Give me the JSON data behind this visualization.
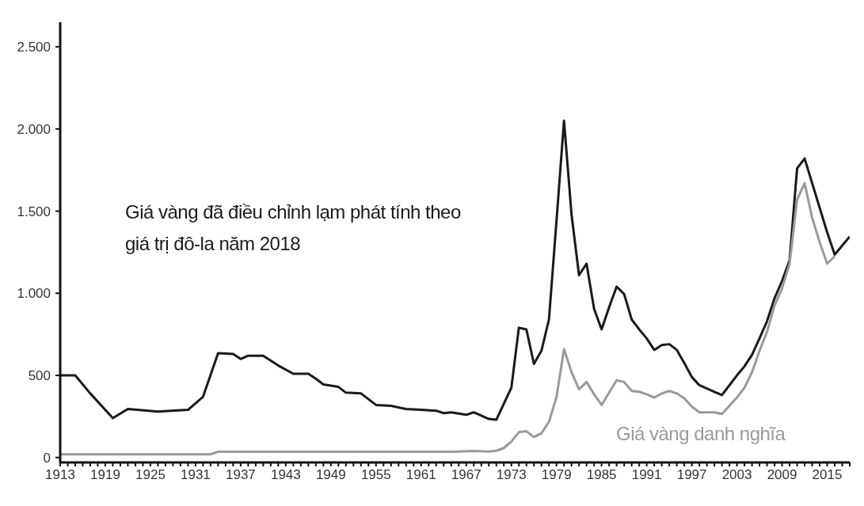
{
  "chart_data": {
    "type": "line",
    "xlim": [
      1913,
      2018
    ],
    "ylim": [
      -30,
      2650
    ],
    "xticks": [
      {
        "value": 1913,
        "label": "1913"
      },
      {
        "value": 1914,
        "label": null
      },
      {
        "value": 1915,
        "label": null
      },
      {
        "value": 1916,
        "label": null
      },
      {
        "value": 1917,
        "label": null
      },
      {
        "value": 1918,
        "label": null
      },
      {
        "value": 1919,
        "label": "1919"
      },
      {
        "value": 1920,
        "label": null
      },
      {
        "value": 1921,
        "label": null
      },
      {
        "value": 1922,
        "label": null
      },
      {
        "value": 1923,
        "label": null
      },
      {
        "value": 1924,
        "label": null
      },
      {
        "value": 1925,
        "label": "1925"
      },
      {
        "value": 1926,
        "label": null
      },
      {
        "value": 1927,
        "label": null
      },
      {
        "value": 1928,
        "label": null
      },
      {
        "value": 1929,
        "label": null
      },
      {
        "value": 1930,
        "label": null
      },
      {
        "value": 1931,
        "label": "1931"
      },
      {
        "value": 1932,
        "label": null
      },
      {
        "value": 1933,
        "label": null
      },
      {
        "value": 1934,
        "label": null
      },
      {
        "value": 1935,
        "label": null
      },
      {
        "value": 1936,
        "label": null
      },
      {
        "value": 1937,
        "label": "1937"
      },
      {
        "value": 1938,
        "label": null
      },
      {
        "value": 1939,
        "label": null
      },
      {
        "value": 1940,
        "label": null
      },
      {
        "value": 1941,
        "label": null
      },
      {
        "value": 1942,
        "label": null
      },
      {
        "value": 1943,
        "label": "1943"
      },
      {
        "value": 1944,
        "label": null
      },
      {
        "value": 1945,
        "label": null
      },
      {
        "value": 1946,
        "label": null
      },
      {
        "value": 1947,
        "label": null
      },
      {
        "value": 1948,
        "label": null
      },
      {
        "value": 1949,
        "label": "1949"
      },
      {
        "value": 1950,
        "label": null
      },
      {
        "value": 1951,
        "label": null
      },
      {
        "value": 1952,
        "label": null
      },
      {
        "value": 1953,
        "label": null
      },
      {
        "value": 1954,
        "label": null
      },
      {
        "value": 1955,
        "label": "1955"
      },
      {
        "value": 1956,
        "label": null
      },
      {
        "value": 1957,
        "label": null
      },
      {
        "value": 1958,
        "label": null
      },
      {
        "value": 1959,
        "label": null
      },
      {
        "value": 1960,
        "label": null
      },
      {
        "value": 1961,
        "label": "1961"
      },
      {
        "value": 1962,
        "label": null
      },
      {
        "value": 1963,
        "label": null
      },
      {
        "value": 1964,
        "label": null
      },
      {
        "value": 1965,
        "label": null
      },
      {
        "value": 1966,
        "label": null
      },
      {
        "value": 1967,
        "label": "1967"
      },
      {
        "value": 1968,
        "label": null
      },
      {
        "value": 1969,
        "label": null
      },
      {
        "value": 1970,
        "label": null
      },
      {
        "value": 1971,
        "label": null
      },
      {
        "value": 1972,
        "label": null
      },
      {
        "value": 1973,
        "label": "1973"
      },
      {
        "value": 1974,
        "label": null
      },
      {
        "value": 1975,
        "label": null
      },
      {
        "value": 1976,
        "label": null
      },
      {
        "value": 1977,
        "label": null
      },
      {
        "value": 1978,
        "label": null
      },
      {
        "value": 1979,
        "label": "1979"
      },
      {
        "value": 1980,
        "label": null
      },
      {
        "value": 1981,
        "label": null
      },
      {
        "value": 1982,
        "label": null
      },
      {
        "value": 1983,
        "label": null
      },
      {
        "value": 1984,
        "label": null
      },
      {
        "value": 1985,
        "label": "1985"
      },
      {
        "value": 1986,
        "label": null
      },
      {
        "value": 1987,
        "label": null
      },
      {
        "value": 1988,
        "label": null
      },
      {
        "value": 1989,
        "label": null
      },
      {
        "value": 1990,
        "label": null
      },
      {
        "value": 1991,
        "label": "1991"
      },
      {
        "value": 1992,
        "label": null
      },
      {
        "value": 1993,
        "label": null
      },
      {
        "value": 1994,
        "label": null
      },
      {
        "value": 1995,
        "label": null
      },
      {
        "value": 1996,
        "label": null
      },
      {
        "value": 1997,
        "label": "1997"
      },
      {
        "value": 1998,
        "label": null
      },
      {
        "value": 1999,
        "label": null
      },
      {
        "value": 2000,
        "label": null
      },
      {
        "value": 2001,
        "label": null
      },
      {
        "value": 2002,
        "label": null
      },
      {
        "value": 2003,
        "label": "2003"
      },
      {
        "value": 2004,
        "label": null
      },
      {
        "value": 2005,
        "label": null
      },
      {
        "value": 2006,
        "label": null
      },
      {
        "value": 2007,
        "label": null
      },
      {
        "value": 2008,
        "label": null
      },
      {
        "value": 2009,
        "label": "2009"
      },
      {
        "value": 2010,
        "label": null
      },
      {
        "value": 2011,
        "label": null
      },
      {
        "value": 2012,
        "label": null
      },
      {
        "value": 2013,
        "label": null
      },
      {
        "value": 2014,
        "label": null
      },
      {
        "value": 2015,
        "label": "2015"
      },
      {
        "value": 2016,
        "label": null
      },
      {
        "value": 2017,
        "label": null
      },
      {
        "value": 2018,
        "label": null
      }
    ],
    "yticks": [
      {
        "value": 0,
        "label": "0"
      },
      {
        "value": 500,
        "label": "500"
      },
      {
        "value": 1000,
        "label": "1.000"
      },
      {
        "value": 1500,
        "label": "1.500"
      },
      {
        "value": 2000,
        "label": "2.000"
      },
      {
        "value": 2500,
        "label": "2.500"
      }
    ],
    "marker": "none",
    "line_style": "solid",
    "series": [
      {
        "name": "Giá vàng đã điều chỉnh lạm phát tính theo giá trị đô-la năm 2018",
        "color": "#1a1a1a",
        "x": [
          1913,
          1915,
          1917,
          1920,
          1922,
          1926,
          1930,
          1932,
          1934,
          1936,
          1937,
          1938,
          1940,
          1942,
          1944,
          1946,
          1947,
          1948,
          1950,
          1951,
          1953,
          1955,
          1957,
          1959,
          1961,
          1963,
          1964,
          1965,
          1967,
          1968,
          1970,
          1971,
          1973,
          1974,
          1975,
          1976,
          1977,
          1978,
          1979,
          1980,
          1981,
          1982,
          1983,
          1984,
          1985,
          1986,
          1987,
          1988,
          1989,
          1990,
          1991,
          1992,
          1993,
          1994,
          1995,
          1996,
          1997,
          1998,
          1999,
          2000,
          2001,
          2002,
          2003,
          2004,
          2005,
          2006,
          2007,
          2008,
          2009,
          2010,
          2011,
          2012,
          2014,
          2015,
          2016,
          2018
        ],
        "values": [
          500,
          500,
          390,
          240,
          295,
          280,
          290,
          370,
          635,
          630,
          600,
          620,
          620,
          560,
          510,
          510,
          480,
          445,
          430,
          395,
          390,
          320,
          315,
          295,
          290,
          285,
          270,
          275,
          260,
          275,
          235,
          230,
          425,
          790,
          780,
          570,
          650,
          840,
          1440,
          2050,
          1480,
          1110,
          1180,
          905,
          780,
          915,
          1040,
          995,
          840,
          780,
          725,
          655,
          685,
          690,
          655,
          575,
          490,
          440,
          420,
          400,
          380,
          440,
          500,
          555,
          625,
          725,
          830,
          970,
          1075,
          1200,
          1760,
          1820,
          1520,
          1370,
          1235,
          1345
        ]
      },
      {
        "name": "Giá vàng danh nghĩa",
        "color": "#9a9a9a",
        "x": [
          1913,
          1933,
          1934,
          1964,
          1965,
          1968,
          1970,
          1971,
          1972,
          1973,
          1974,
          1975,
          1976,
          1977,
          1978,
          1979,
          1980,
          1981,
          1982,
          1983,
          1984,
          1985,
          1986,
          1987,
          1988,
          1989,
          1990,
          1991,
          1992,
          1993,
          1994,
          1995,
          1996,
          1997,
          1998,
          1999,
          2000,
          2001,
          2002,
          2003,
          2004,
          2005,
          2006,
          2007,
          2008,
          2009,
          2010,
          2011,
          2012,
          2013,
          2014,
          2015,
          2016
        ],
        "values": [
          20,
          20,
          35,
          35,
          35,
          40,
          36,
          41,
          58,
          97,
          154,
          160,
          125,
          148,
          217,
          368,
          660,
          520,
          415,
          460,
          385,
          320,
          395,
          470,
          460,
          405,
          400,
          385,
          365,
          390,
          405,
          390,
          360,
          310,
          275,
          275,
          275,
          265,
          315,
          365,
          425,
          520,
          650,
          765,
          925,
          1030,
          1180,
          1570,
          1670,
          1460,
          1310,
          1180,
          1225
        ]
      }
    ]
  }
}
